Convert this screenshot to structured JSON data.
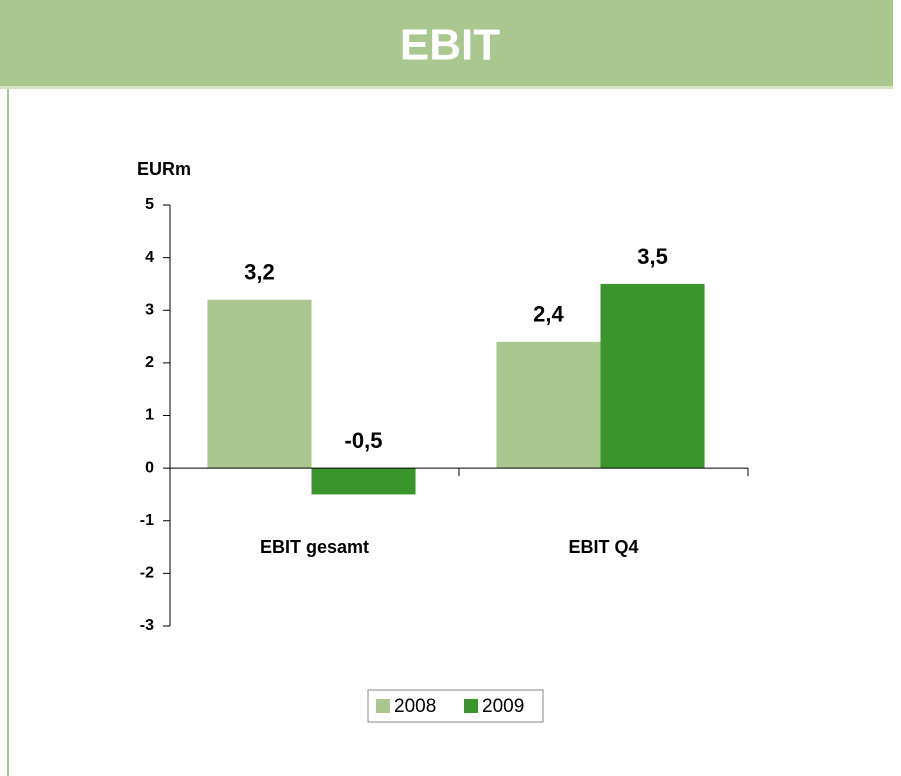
{
  "chart_data": {
    "type": "bar",
    "title": "EBIT",
    "y_label": "EURm",
    "categories": [
      "EBIT gesamt",
      "EBIT Q4"
    ],
    "series": [
      {
        "name": "2008",
        "color": "#a9c78f",
        "values": [
          3.2,
          2.4
        ],
        "value_labels": [
          "3,2",
          "2,4"
        ]
      },
      {
        "name": "2009",
        "color": "#3a962c",
        "values": [
          -0.5,
          3.5
        ],
        "value_labels": [
          "-0,5",
          "3,5"
        ]
      }
    ],
    "ylim": [
      -3,
      5
    ],
    "yticks": [
      -3,
      -2,
      -1,
      0,
      1,
      2,
      3,
      4,
      5
    ],
    "legend": "bottom"
  }
}
